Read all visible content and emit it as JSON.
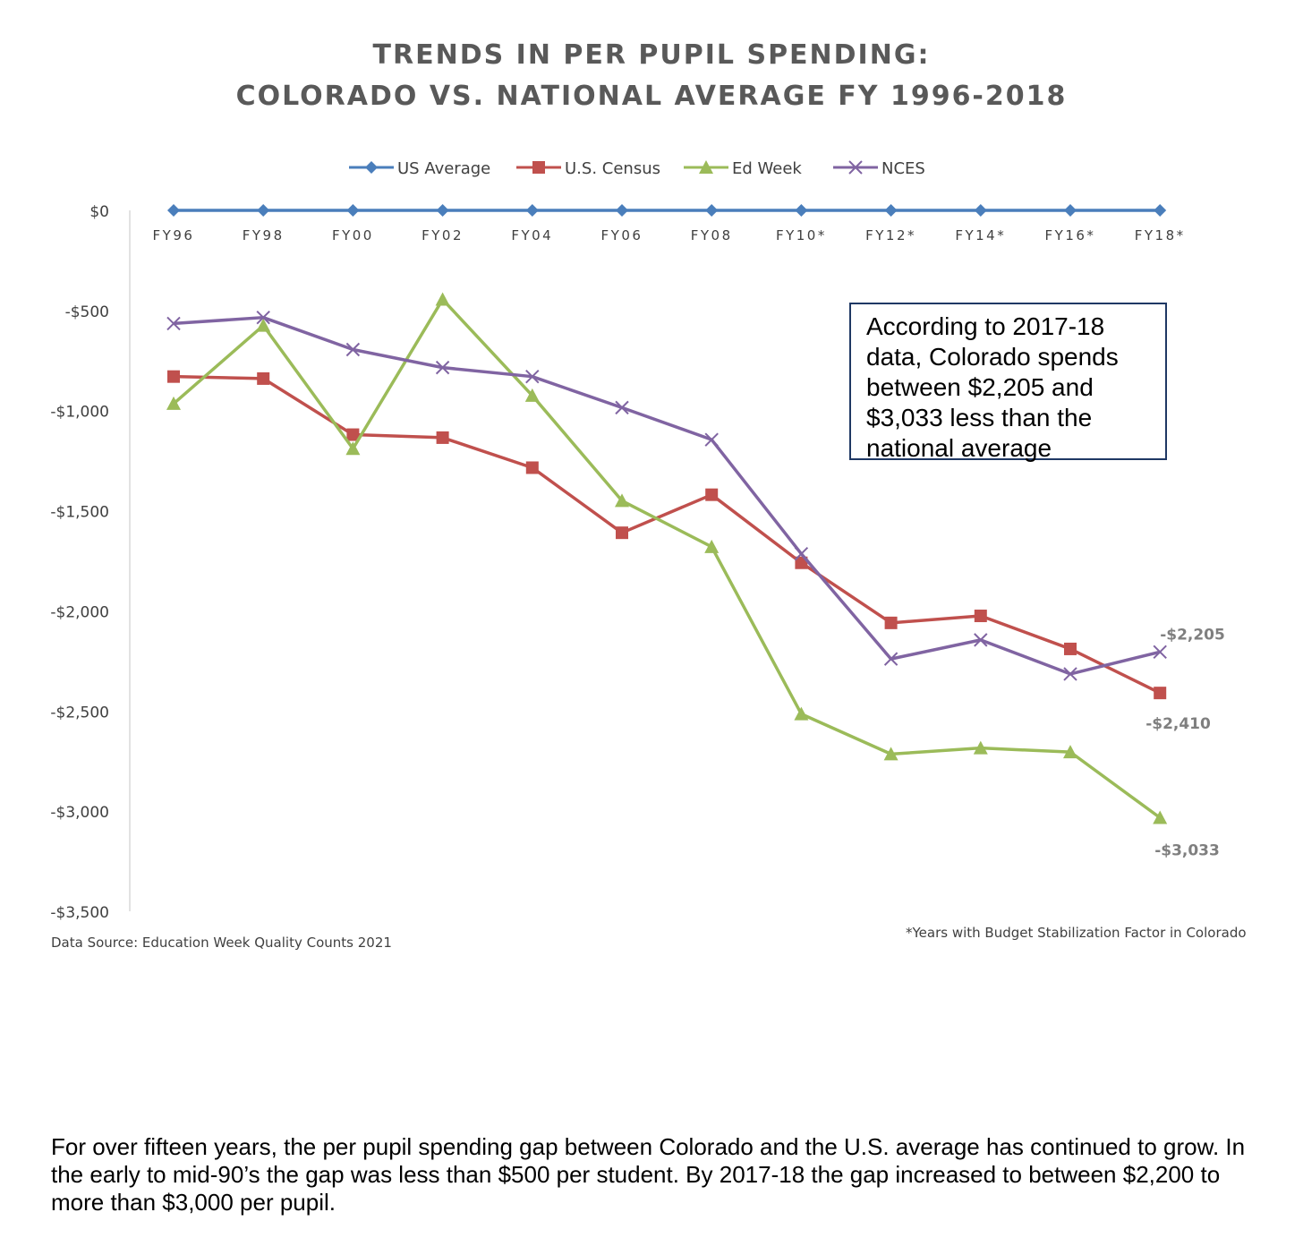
{
  "chart_data": {
    "type": "line",
    "title": "TRENDS IN PER PUPIL SPENDING:",
    "subtitle": "COLORADO VS. NATIONAL AVERAGE FY 1996-2018",
    "categories": [
      "FY96",
      "FY98",
      "FY00",
      "FY02",
      "FY04",
      "FY06",
      "FY08",
      "FY10*",
      "FY12*",
      "FY14*",
      "FY16*",
      "FY18*"
    ],
    "ylim": [
      -3500,
      0
    ],
    "yticks": [
      0,
      -500,
      -1000,
      -1500,
      -2000,
      -2500,
      -3000,
      -3500
    ],
    "ytick_labels": [
      "$0",
      "-$500",
      "-$1,000",
      "-$1,500",
      "-$2,000",
      "-$2,500",
      "-$3,000",
      "-$3,500"
    ],
    "legend_position": "top",
    "grid": false,
    "series": [
      {
        "name": "US Average",
        "color": "#4a7ebb",
        "marker": "diamond",
        "values": [
          0,
          0,
          0,
          0,
          0,
          0,
          0,
          0,
          0,
          0,
          0,
          0
        ]
      },
      {
        "name": "U.S. Census",
        "color": "#c0504d",
        "marker": "square",
        "values": [
          -830,
          -840,
          -1120,
          -1135,
          -1285,
          -1610,
          -1420,
          -1760,
          -2060,
          -2025,
          -2190,
          -2410
        ]
      },
      {
        "name": "Ed Week",
        "color": "#9bbb59",
        "marker": "triangle",
        "values": [
          -965,
          -575,
          -1190,
          -445,
          -925,
          -1450,
          -1680,
          -2515,
          -2715,
          -2685,
          -2705,
          -3033
        ]
      },
      {
        "name": "NCES",
        "color": "#8064a2",
        "marker": "x",
        "values": [
          -565,
          -535,
          -695,
          -785,
          -830,
          -985,
          -1145,
          -1715,
          -2240,
          -2145,
          -2315,
          -2205
        ]
      }
    ],
    "data_labels": [
      {
        "series": "NCES",
        "index": 11,
        "text": "-$2,205"
      },
      {
        "series": "U.S. Census",
        "index": 11,
        "text": "-$2,410"
      },
      {
        "series": "Ed Week",
        "index": 11,
        "text": "-$3,033"
      }
    ],
    "annotation": "According to 2017-18 data, Colorado spends between $2,205 and $3,033 less than the national average",
    "source": "Data Source: Education Week Quality Counts 2021",
    "footnote": "*Years with Budget Stabilization Factor in Colorado"
  },
  "caption": "For over fifteen years, the per pupil spending gap between Colorado and the U.S. average has continued to grow. In the early to mid-90’s the gap was less than $500 per student. By 2017-18 the gap increased to between $2,200 to more than $3,000 per pupil."
}
